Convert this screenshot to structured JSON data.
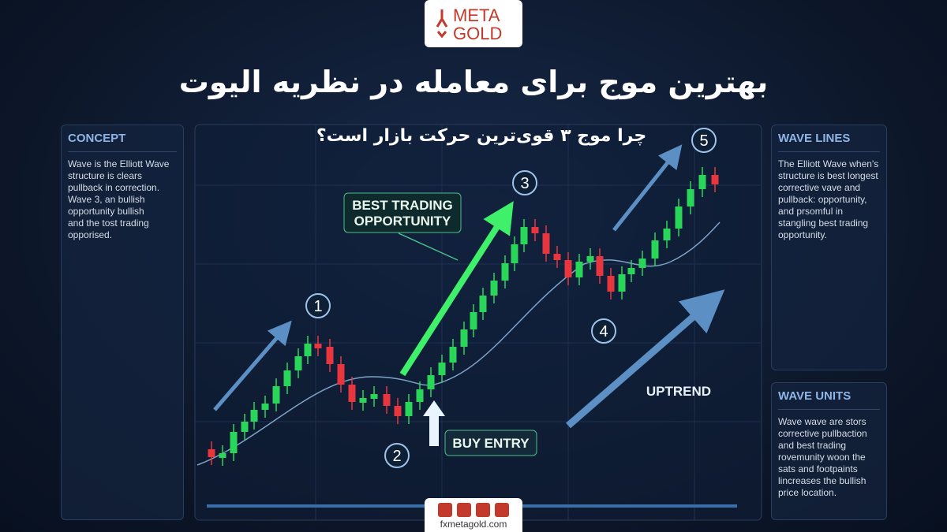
{
  "logo": {
    "top": "META",
    "bottom": "GOLD"
  },
  "header": {
    "title": "بهترین موج برای معامله در نظریه الیوت",
    "subtitle": "چرا موج ۳ قوی‌ترین حرکت بازار است؟"
  },
  "panels": [
    {
      "title": "CONCEPT",
      "lines": [
        "Wave is the Elliott Wave",
        "structure is clears",
        "pullback in correction.",
        "Wave 3, an bullish",
        "opportunity bullish",
        "and the tost trading",
        "opporised."
      ]
    },
    {
      "title": "WAVE LINES",
      "lines": [
        "The Elliott Wave when's",
        "structure is best longest",
        "corrective vave and",
        "pullback: opportunity,",
        "and prsomful in",
        "stangling best trading",
        "opportunity."
      ]
    },
    {
      "title": "WAVE UNITS",
      "lines": [
        "Wave wave are stors",
        "corrective pullbaction",
        "and best trading",
        "rovemunity woon the",
        "sats and footpaints",
        "lincreases the bullish",
        "price location."
      ]
    }
  ],
  "waves": [
    1,
    2,
    3,
    4,
    5
  ],
  "callouts": {
    "best": [
      "BEST TRADING",
      "OPPORTUNITY"
    ],
    "buy": "BUY ENTRY",
    "trend": "UPTREND"
  },
  "footer": {
    "url": "fxmetagold.com"
  }
}
